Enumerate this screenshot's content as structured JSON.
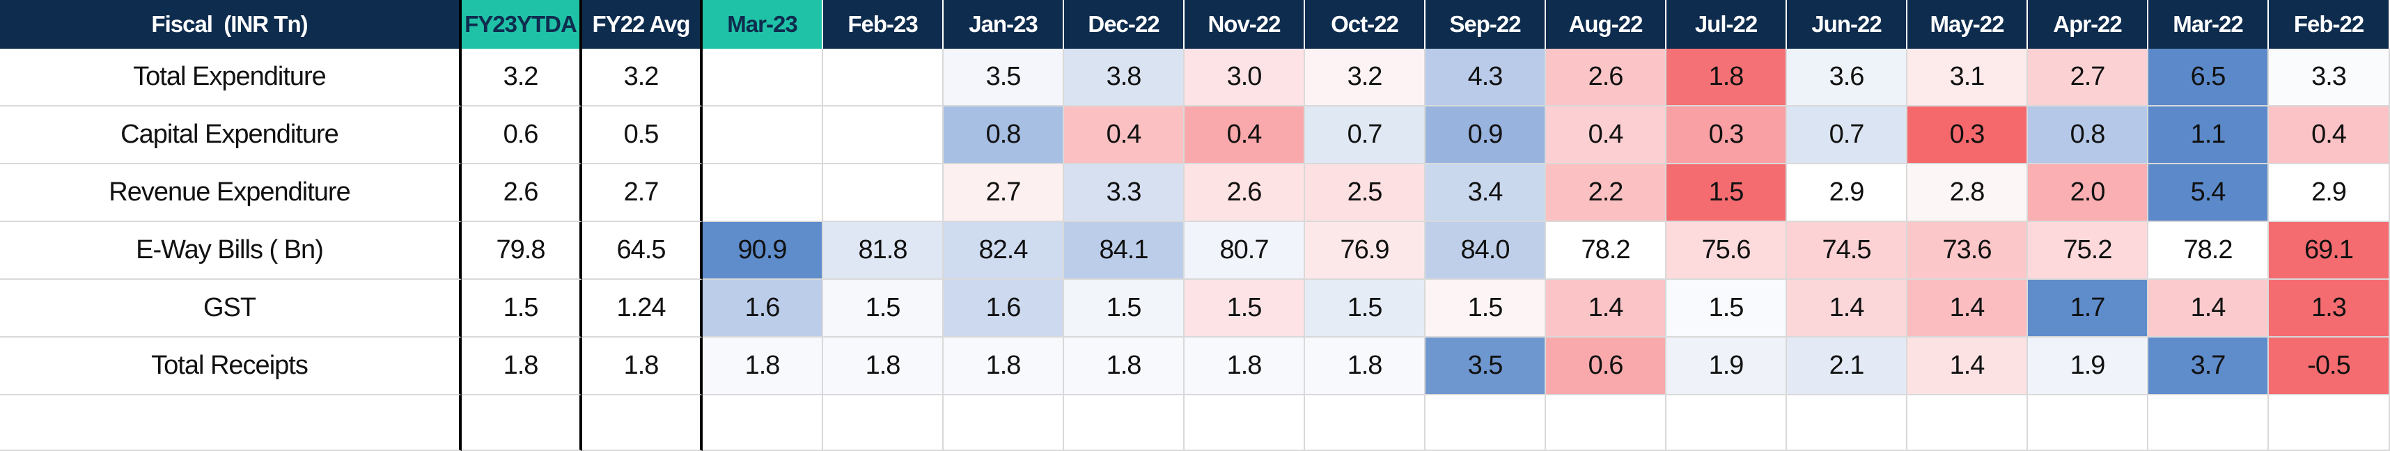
{
  "header": [
    "Fiscal  (INR Tn)",
    "FY23YTDA",
    "FY22 Avg",
    "Mar-23",
    "Feb-23",
    "Jan-23",
    "Dec-22",
    "Nov-22",
    "Oct-22",
    "Sep-22",
    "Aug-22",
    "Jul-22",
    "Jun-22",
    "May-22",
    "Apr-22",
    "Mar-22",
    "Feb-22"
  ],
  "header_colors": [
    "#0e2c4e",
    "#1fc2a6",
    "#0e2c4e",
    "#1fc2a6",
    "#0e2c4e",
    "#0e2c4e",
    "#0e2c4e",
    "#0e2c4e",
    "#0e2c4e",
    "#0e2c4e",
    "#0e2c4e",
    "#0e2c4e",
    "#0e2c4e",
    "#0e2c4e",
    "#0e2c4e",
    "#0e2c4e",
    "#0e2c4e"
  ],
  "rows": [
    {
      "label": "Total Expenditure",
      "cells": [
        "3.2",
        "3.2",
        null,
        null,
        "3.5",
        "3.8",
        "3.0",
        "3.2",
        "4.3",
        "2.6",
        "1.8",
        "3.6",
        "3.1",
        "2.7",
        "6.5",
        "3.3"
      ],
      "colors": [
        "#ffffff",
        "#ffffff",
        "#ffffff",
        "#ffffff",
        "#f4f6fb",
        "#dae3f2",
        "#fde3e5",
        "#fdf3f4",
        "#b9cbe8",
        "#fbc5c7",
        "#f47175",
        "#eef2f9",
        "#fdeaeb",
        "#fbd1d3",
        "#5b89c9",
        "#fafbfd"
      ]
    },
    {
      "label": "Capital Expenditure",
      "cells": [
        "0.6",
        "0.5",
        null,
        null,
        "0.8",
        "0.4",
        "0.4",
        "0.7",
        "0.9",
        "0.4",
        "0.3",
        "0.7",
        "0.3",
        "0.8",
        "1.1",
        "0.4"
      ],
      "colors": [
        "#ffffff",
        "#ffffff",
        "#ffffff",
        "#ffffff",
        "#a7bfe3",
        "#fbc0c2",
        "#f9a8ab",
        "#e0e8f4",
        "#98b3de",
        "#fcd0d2",
        "#f8a0a3",
        "#dbe4f2",
        "#f5686c",
        "#b5c8e7",
        "#5b89c9",
        "#fbc3c5"
      ]
    },
    {
      "label": "Revenue Expenditure",
      "cells": [
        "2.6",
        "2.7",
        null,
        null,
        "2.7",
        "3.3",
        "2.6",
        "2.5",
        "3.4",
        "2.2",
        "1.5",
        "2.9",
        "2.8",
        "2.0",
        "5.4",
        "2.9"
      ],
      "colors": [
        "#ffffff",
        "#ffffff",
        "#ffffff",
        "#ffffff",
        "#fdf0f1",
        "#d6e0f1",
        "#fde3e4",
        "#fde0e2",
        "#cad8ee",
        "#fbc0c2",
        "#f46c70",
        "#ffffff",
        "#fdf6f6",
        "#faafb2",
        "#5b89c9",
        "#ffffff"
      ]
    },
    {
      "label": "E-Way Bills ( Bn)",
      "cells": [
        "79.8",
        "64.5",
        "90.9",
        "81.8",
        "82.4",
        "84.1",
        "80.7",
        "76.9",
        "84.0",
        "78.2",
        "75.6",
        "74.5",
        "73.6",
        "75.2",
        "78.2",
        "69.1"
      ],
      "colors": [
        "#ffffff",
        "#ffffff",
        "#5f8ccb",
        "#dfe7f4",
        "#cfdbef",
        "#bccdea",
        "#f1f4fa",
        "#fde8e9",
        "#bfcfea",
        "#ffffff",
        "#fddbdd",
        "#fcd2d4",
        "#fbc7c9",
        "#fdd9db",
        "#ffffff",
        "#f46c70"
      ]
    },
    {
      "label": "GST",
      "cells": [
        "1.5",
        "1.24",
        "1.6",
        "1.5",
        "1.6",
        "1.5",
        "1.5",
        "1.5",
        "1.5",
        "1.4",
        "1.5",
        "1.4",
        "1.4",
        "1.7",
        "1.4",
        "1.3"
      ],
      "colors": [
        "#ffffff",
        "#ffffff",
        "#bccdea",
        "#f6f8fc",
        "#ccd9ee",
        "#f2f5fa",
        "#fde3e5",
        "#e5ecf6",
        "#fdf4f5",
        "#fbc4c6",
        "#f9fafd",
        "#fcd7d9",
        "#fbbdc0",
        "#5f8ccb",
        "#fbcacc",
        "#f46c70"
      ]
    },
    {
      "label": "Total Receipts",
      "cells": [
        "1.8",
        "1.8",
        "1.8",
        "1.8",
        "1.8",
        "1.8",
        "1.8",
        "1.8",
        "3.5",
        "0.6",
        "1.9",
        "2.1",
        "1.4",
        "1.9",
        "3.7",
        "-0.5"
      ],
      "colors": [
        "#ffffff",
        "#ffffff",
        "#f8f9fd",
        "#f8f9fd",
        "#f8f9fd",
        "#f8f9fd",
        "#f8f9fd",
        "#f8f9fd",
        "#6e97cf",
        "#f9a9ac",
        "#eff3f9",
        "#e3eaf5",
        "#fde2e4",
        "#f0f4fa",
        "#5f8ccb",
        "#f46c70"
      ]
    }
  ]
}
